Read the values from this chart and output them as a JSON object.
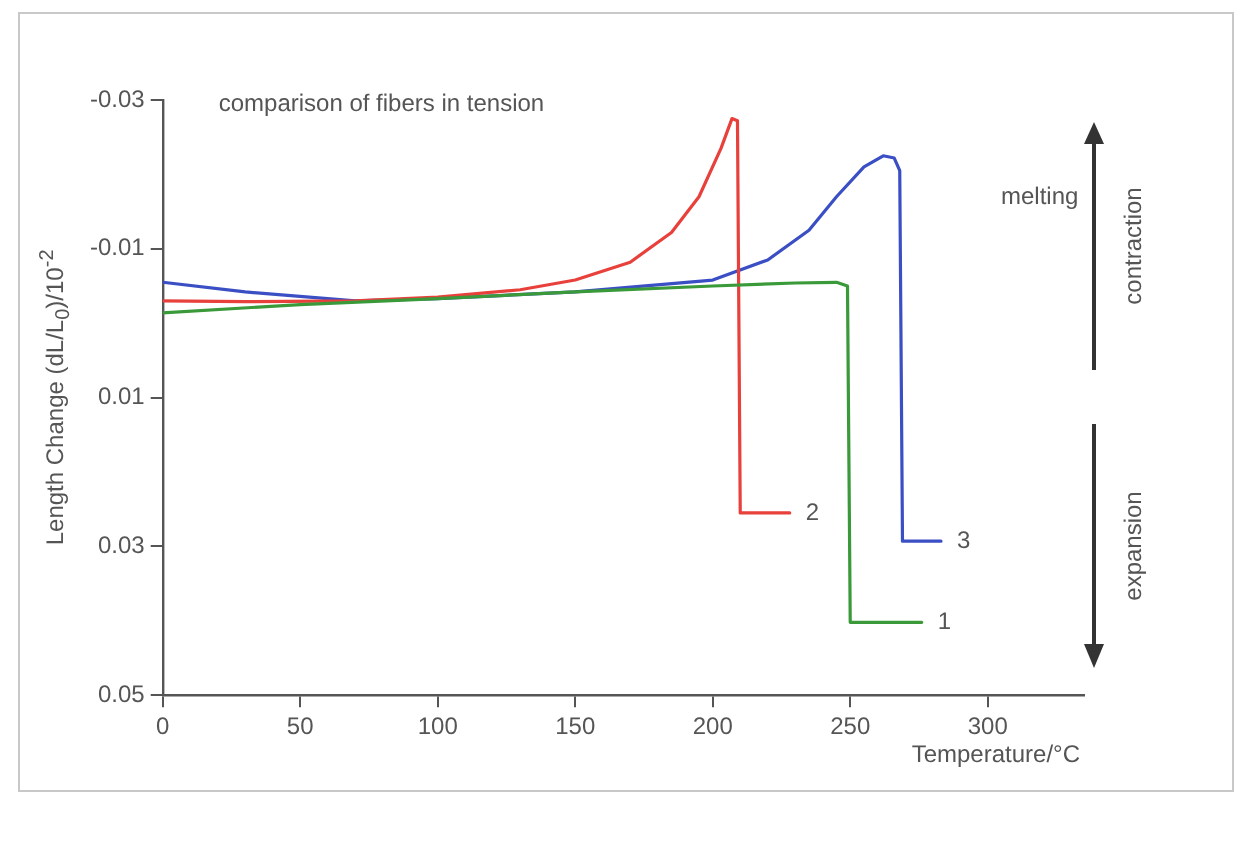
{
  "chart_data": {
    "type": "line",
    "title": "comparison of fibers in tension",
    "xlabel": "Temperature/°C",
    "ylabel": "Length Change (dL/L$_{0}$)/10$^{-2}$",
    "series": [
      {
        "name": "1",
        "color": "#3a9a3a",
        "x": [
          0,
          50,
          100,
          150,
          200,
          230,
          245,
          249,
          250,
          276
        ],
        "values": [
          -0.0014,
          -0.0025,
          -0.0033,
          -0.0042,
          -0.005,
          -0.0054,
          -0.0055,
          -0.005,
          0.0402,
          0.0402
        ]
      },
      {
        "name": "2",
        "color": "#e8413c",
        "x": [
          0,
          30,
          70,
          100,
          130,
          150,
          170,
          185,
          195,
          203,
          207,
          209,
          210,
          228
        ],
        "values": [
          -0.003,
          -0.0029,
          -0.003,
          -0.0035,
          -0.0045,
          -0.0058,
          -0.0082,
          -0.0122,
          -0.017,
          -0.0235,
          -0.0275,
          -0.0272,
          0.0255,
          0.0255
        ]
      },
      {
        "name": "3",
        "color": "#3b4fc4",
        "x": [
          0,
          30,
          70,
          100,
          150,
          200,
          220,
          235,
          245,
          255,
          262,
          266,
          268,
          269,
          283
        ],
        "values": [
          -0.0055,
          -0.0042,
          -0.003,
          -0.0033,
          -0.0042,
          -0.0058,
          -0.0085,
          -0.0125,
          -0.017,
          -0.021,
          -0.0225,
          -0.0222,
          -0.0205,
          0.0293,
          0.0293
        ]
      }
    ],
    "xlim": [
      0,
      335
    ],
    "xticks": [
      0,
      50,
      100,
      150,
      200,
      250,
      300
    ],
    "ylim": [
      0.05,
      -0.03
    ],
    "yticks": [
      -0.03,
      -0.01,
      0.01,
      0.03,
      0.05
    ],
    "annotations": [
      "melting",
      "contraction",
      "expansion"
    ],
    "grid": false,
    "legend": false,
    "marker": "none",
    "line_style": "solid"
  }
}
